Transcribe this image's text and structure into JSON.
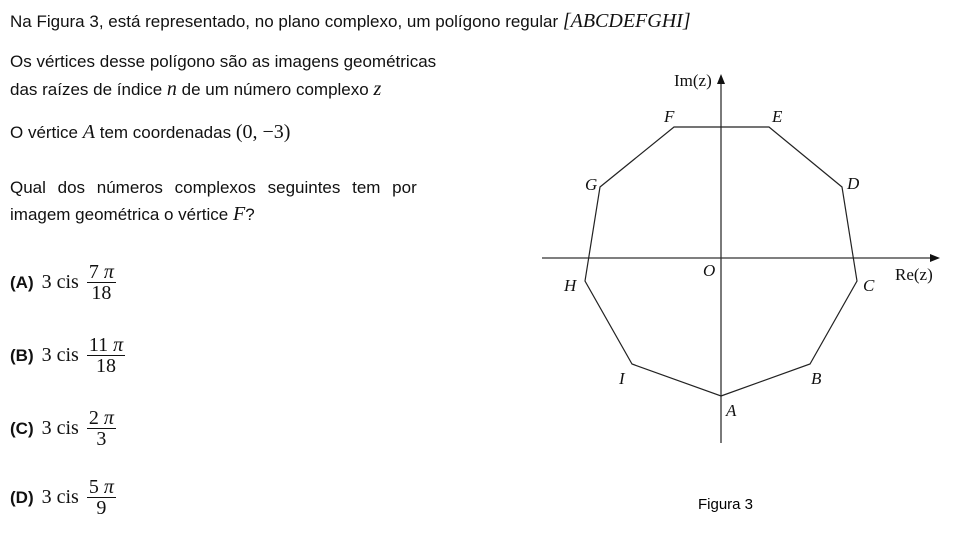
{
  "intro": {
    "text": "Na Figura 3, está representado, no plano complexo, um polígono regular",
    "polygon": "[ABCDEFGHI]"
  },
  "line1": "Os vértices desse polígono são as imagens geométricas",
  "line2a": "das raízes de índice",
  "line2_n": "n",
  "line2b": "de um número complexo",
  "line2_z": "z",
  "line3a": "O vértice",
  "line3_A": "A",
  "line3b": "tem coordenadas",
  "line3_coord": "(0, −3)",
  "question1": "Qual dos números complexos seguintes tem por",
  "question2": "imagem geométrica o vértice",
  "question_F": "F",
  "question_end": "?",
  "options": [
    {
      "label": "(A)",
      "coef": "3 cis",
      "num": "7",
      "den": "18"
    },
    {
      "label": "(B)",
      "coef": "3 cis",
      "num": "11",
      "den": "18"
    },
    {
      "label": "(C)",
      "coef": "3 cis",
      "num": "2",
      "den": "3"
    },
    {
      "label": "(D)",
      "coef": "3 cis",
      "num": "5",
      "den": "9"
    }
  ],
  "pi": "π",
  "figure": {
    "caption": "Figura 3",
    "x_axis": "Re(z)",
    "y_axis": "Im(z)",
    "origin": "O",
    "vertices": [
      "A",
      "B",
      "C",
      "D",
      "E",
      "F",
      "G",
      "H",
      "I"
    ]
  }
}
